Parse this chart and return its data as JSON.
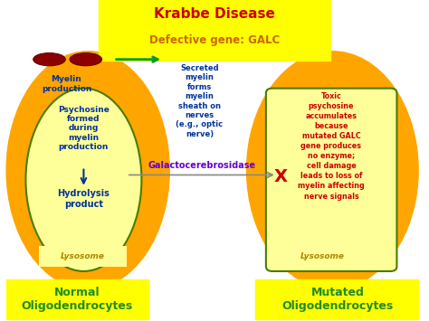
{
  "title": "Krabbe Disease",
  "subtitle": "Defective gene: GALC",
  "title_color": "#cc0000",
  "subtitle_color": "#cc6600",
  "title_bg": "#ffff00",
  "left_label": "Normal\nOligodendrocytes",
  "right_label": "Mutated\nOligodendrocytes",
  "label_color": "#cc6600",
  "label_text_color": "#228B22",
  "label_bg": "#ffff00",
  "outer_ellipse_color": "#ffa500",
  "inner_ellipse_color": "#ffff99",
  "inner_ellipse_border": "#4a7c00",
  "myelin_label": "Myelin\nproduction",
  "myelin_color": "#003399",
  "psychosine_text": "Psychosine\nformed\nduring\nmyelin\nproduction",
  "psychosine_color": "#003399",
  "hydrolysis_text": "Hydrolysis\nproduct",
  "hydrolysis_color": "#003399",
  "lysosome_text": "Lysosome",
  "lysosome_color": "#aa8800",
  "lysosome_bg": "#ffff99",
  "secreted_text": "Secreted\nmyelin\nforms\nmyelin\nsheath on\nnerves\n(e.g., optic\nnerve)",
  "secreted_color": "#003399",
  "galacto_text": "Galactocerebrosidase",
  "galacto_color": "#6600cc",
  "toxic_text": "Toxic\npsychosine\naccumulates\nbecause\nmutated GALC\ngene produces\nno enzyme;\ncell damage\nleads to loss of\nmyelin affecting\nnerve signals",
  "toxic_color": "#cc0000",
  "myelin_pill_color": "#8b0000",
  "arrow_green": "#009933",
  "arrow_blue": "#003399",
  "x_color": "#cc0000",
  "bg_color": "#ffffff",
  "fig_w": 4.74,
  "fig_h": 3.55,
  "dpi": 100
}
